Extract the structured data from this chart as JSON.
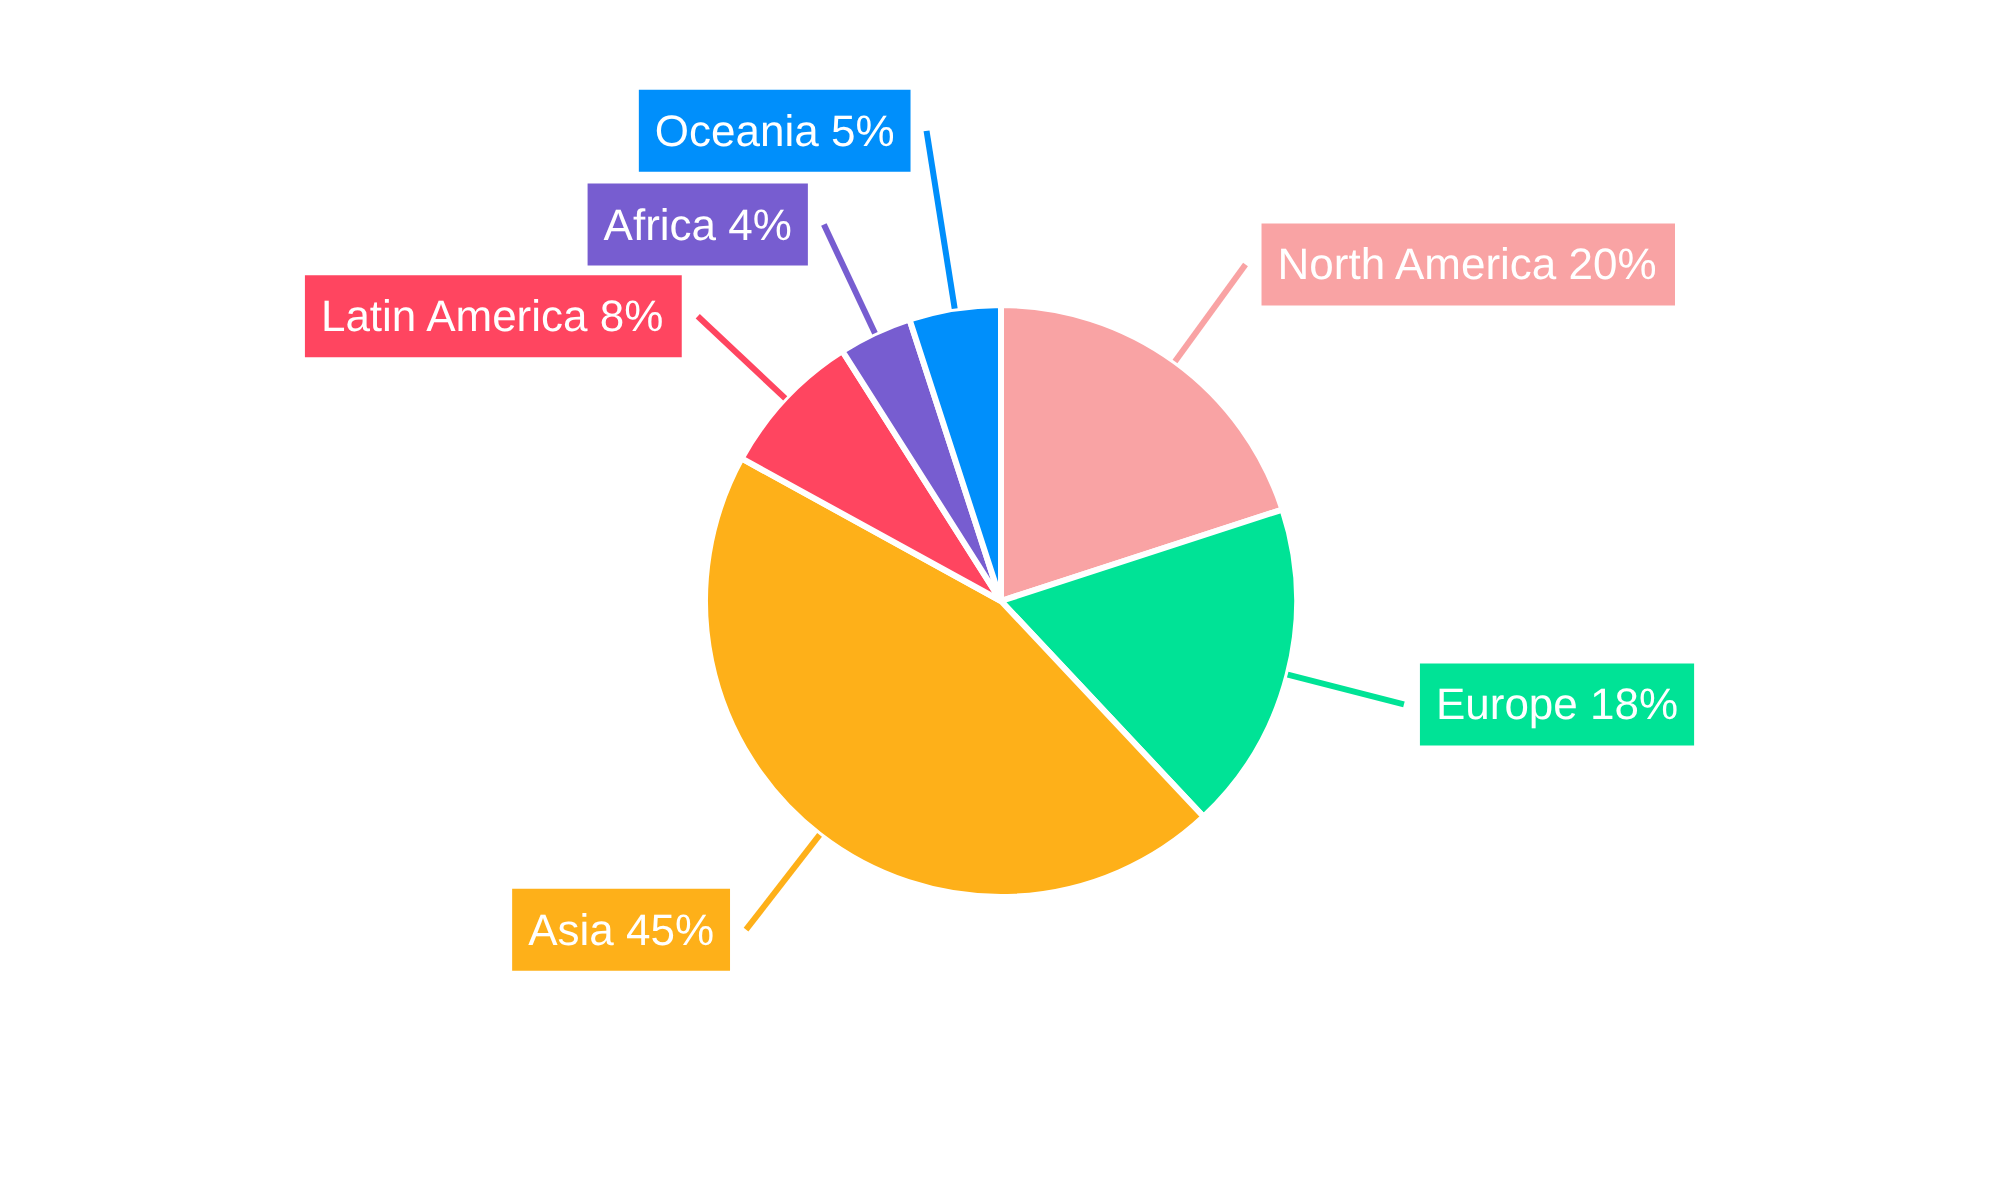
{
  "chart_data": {
    "type": "pie",
    "categories": [
      "North America",
      "Europe",
      "Asia",
      "Latin America",
      "Africa",
      "Oceania"
    ],
    "values": [
      20,
      18,
      45,
      8,
      4,
      5
    ],
    "colors": [
      "#f9a3a4",
      "#00e396",
      "#feb019",
      "#ff4560",
      "#775dd0",
      "#008ffb"
    ],
    "value_labels": [
      "20%",
      "18%",
      "45%",
      "8%",
      "4%",
      "5%"
    ]
  }
}
